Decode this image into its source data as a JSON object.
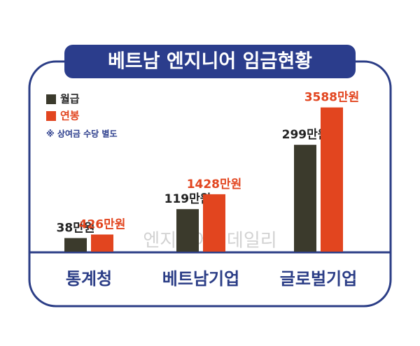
{
  "chart_data": {
    "type": "bar",
    "title": "베트남 엔지니어 임금현황",
    "annotation": "※ 상여금 수당 별도",
    "watermark": "엔지니어링데일리",
    "categories": [
      "통계청",
      "베트남기업",
      "글로벌기업"
    ],
    "series": [
      {
        "name": "월급",
        "color": "#3b3a2c",
        "values": [
          38,
          119,
          299
        ],
        "value_labels": [
          "38만원",
          "119만원",
          "299만원"
        ]
      },
      {
        "name": "연봉",
        "color": "#e2451f",
        "axis": "y2",
        "values": [
          426,
          1428,
          3588
        ],
        "value_labels": [
          "426만원",
          "1428만원",
          "3588만원"
        ]
      }
    ],
    "ylim": [
      0,
      450
    ],
    "y2lim": [
      0,
      4000
    ]
  }
}
